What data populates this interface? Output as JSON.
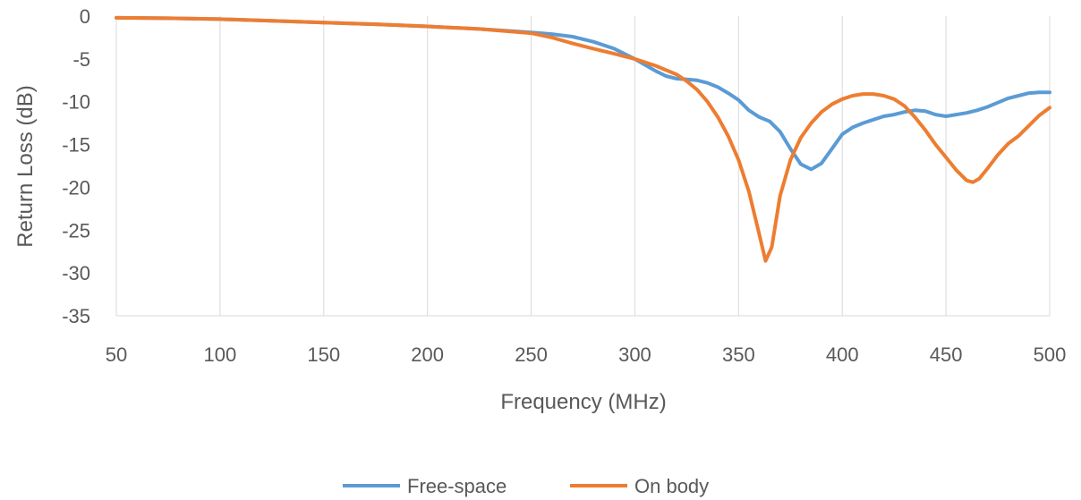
{
  "chart_data": {
    "type": "line",
    "title": "",
    "xlabel": "Frequency (MHz)",
    "ylabel": "Return Loss (dB)",
    "xlim": [
      50,
      500
    ],
    "ylim": [
      -35,
      0
    ],
    "x_ticks": [
      50,
      100,
      150,
      200,
      250,
      300,
      350,
      400,
      450,
      500
    ],
    "y_ticks": [
      0,
      -5,
      -10,
      -15,
      -20,
      -25,
      -30,
      -35
    ],
    "grid": "vertical",
    "legend_position": "bottom",
    "series": [
      {
        "name": "Free-space",
        "color": "#5b9bd5",
        "points": [
          [
            50,
            -0.2
          ],
          [
            75,
            -0.25
          ],
          [
            100,
            -0.35
          ],
          [
            125,
            -0.55
          ],
          [
            150,
            -0.75
          ],
          [
            175,
            -0.95
          ],
          [
            200,
            -1.2
          ],
          [
            225,
            -1.5
          ],
          [
            250,
            -1.9
          ],
          [
            260,
            -2.1
          ],
          [
            270,
            -2.4
          ],
          [
            280,
            -3.0
          ],
          [
            290,
            -3.8
          ],
          [
            300,
            -5.0
          ],
          [
            305,
            -5.7
          ],
          [
            310,
            -6.4
          ],
          [
            315,
            -7.0
          ],
          [
            320,
            -7.3
          ],
          [
            325,
            -7.4
          ],
          [
            330,
            -7.5
          ],
          [
            335,
            -7.8
          ],
          [
            340,
            -8.3
          ],
          [
            345,
            -9.0
          ],
          [
            350,
            -9.8
          ],
          [
            355,
            -11.0
          ],
          [
            360,
            -11.8
          ],
          [
            365,
            -12.3
          ],
          [
            370,
            -13.5
          ],
          [
            375,
            -15.5
          ],
          [
            380,
            -17.3
          ],
          [
            385,
            -17.9
          ],
          [
            390,
            -17.2
          ],
          [
            395,
            -15.5
          ],
          [
            400,
            -13.8
          ],
          [
            405,
            -13.0
          ],
          [
            410,
            -12.5
          ],
          [
            415,
            -12.1
          ],
          [
            420,
            -11.7
          ],
          [
            425,
            -11.5
          ],
          [
            430,
            -11.2
          ],
          [
            435,
            -11.0
          ],
          [
            440,
            -11.1
          ],
          [
            445,
            -11.5
          ],
          [
            450,
            -11.7
          ],
          [
            455,
            -11.5
          ],
          [
            460,
            -11.3
          ],
          [
            465,
            -11.0
          ],
          [
            470,
            -10.6
          ],
          [
            475,
            -10.1
          ],
          [
            480,
            -9.6
          ],
          [
            485,
            -9.3
          ],
          [
            490,
            -9.0
          ],
          [
            495,
            -8.9
          ],
          [
            500,
            -8.9
          ]
        ]
      },
      {
        "name": "On body",
        "color": "#ed7d31",
        "points": [
          [
            50,
            -0.2
          ],
          [
            75,
            -0.25
          ],
          [
            100,
            -0.35
          ],
          [
            125,
            -0.55
          ],
          [
            150,
            -0.75
          ],
          [
            175,
            -0.95
          ],
          [
            200,
            -1.2
          ],
          [
            225,
            -1.5
          ],
          [
            250,
            -2.0
          ],
          [
            260,
            -2.5
          ],
          [
            270,
            -3.2
          ],
          [
            280,
            -3.8
          ],
          [
            290,
            -4.4
          ],
          [
            300,
            -5.0
          ],
          [
            310,
            -5.8
          ],
          [
            320,
            -6.8
          ],
          [
            325,
            -7.6
          ],
          [
            330,
            -8.6
          ],
          [
            335,
            -10.0
          ],
          [
            340,
            -11.8
          ],
          [
            345,
            -14.0
          ],
          [
            350,
            -16.8
          ],
          [
            355,
            -20.5
          ],
          [
            360,
            -25.5
          ],
          [
            363,
            -28.6
          ],
          [
            366,
            -27.0
          ],
          [
            370,
            -21.0
          ],
          [
            375,
            -16.8
          ],
          [
            380,
            -14.2
          ],
          [
            385,
            -12.5
          ],
          [
            390,
            -11.2
          ],
          [
            395,
            -10.3
          ],
          [
            400,
            -9.7
          ],
          [
            405,
            -9.3
          ],
          [
            410,
            -9.1
          ],
          [
            415,
            -9.1
          ],
          [
            420,
            -9.3
          ],
          [
            425,
            -9.7
          ],
          [
            430,
            -10.5
          ],
          [
            435,
            -11.8
          ],
          [
            440,
            -13.3
          ],
          [
            445,
            -15.0
          ],
          [
            450,
            -16.5
          ],
          [
            455,
            -18.0
          ],
          [
            460,
            -19.2
          ],
          [
            463,
            -19.4
          ],
          [
            466,
            -19.0
          ],
          [
            470,
            -17.8
          ],
          [
            475,
            -16.2
          ],
          [
            480,
            -14.9
          ],
          [
            485,
            -14.0
          ],
          [
            490,
            -12.8
          ],
          [
            495,
            -11.6
          ],
          [
            500,
            -10.7
          ]
        ]
      }
    ]
  }
}
